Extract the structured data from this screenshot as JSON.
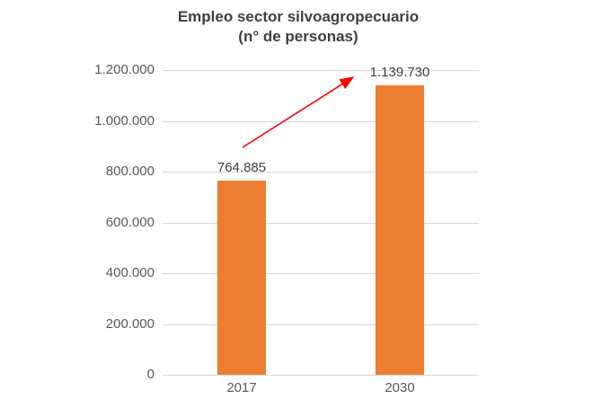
{
  "title": {
    "line1": "Empleo sector silvoagropecuario",
    "line2": "(n° de personas)"
  },
  "chart_data": {
    "type": "bar",
    "title": "Empleo sector silvoagropecuario (n° de personas)",
    "categories": [
      "2017",
      "2030"
    ],
    "values": [
      764885,
      1139730
    ],
    "data_labels": [
      "764.885",
      "1.139.730"
    ],
    "xlabel": "",
    "ylabel": "",
    "ylim": [
      0,
      1200000
    ],
    "y_ticks": [
      0,
      200000,
      400000,
      600000,
      800000,
      1000000,
      1200000
    ],
    "y_tick_labels": [
      "0",
      "200.000",
      "400.000",
      "600.000",
      "800.000",
      "1.000.000",
      "1.200.000"
    ],
    "grid": true,
    "legend": false,
    "bar_color": "#ed7d31",
    "annotation": {
      "kind": "trend-arrow",
      "color": "#ff0000",
      "from_category": "2017",
      "to_category": "2030"
    }
  },
  "colors": {
    "background": "#ffffff",
    "title_text": "#404040",
    "axis_text": "#595959",
    "data_label_text": "#404040",
    "gridline": "#d9d9d9",
    "bar": "#ed7d31",
    "arrow": "#ff0000"
  }
}
